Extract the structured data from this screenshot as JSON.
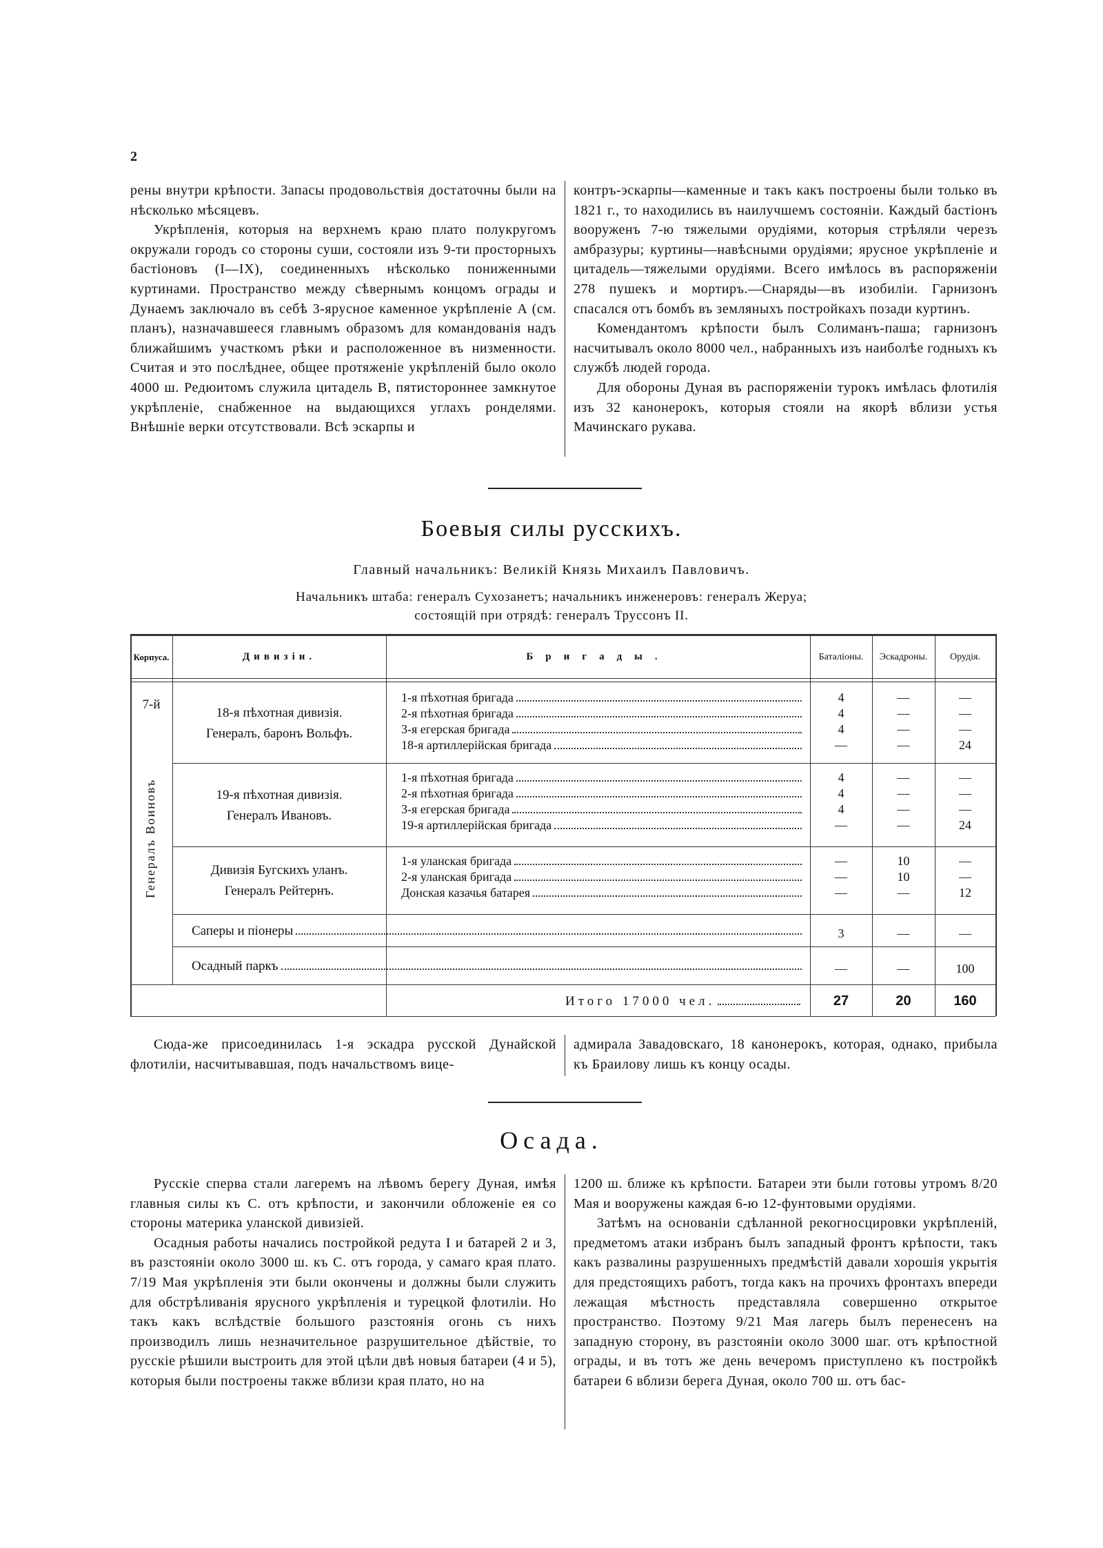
{
  "page_number": "2",
  "intro": {
    "left": [
      "рены внутри крѣпости. Запасы продовольствія достаточны были на нѣсколько мѣсяцевъ.",
      "Укрѣпленія, которыя на верхнемъ краю плато полукругомъ окружали городъ со стороны суши, состояли изъ 9-ти просторныхъ бастіоновъ (I—IX), соединенныхъ нѣсколько пониженными куртинами. Пространство между сѣвернымъ концомъ ограды и Дунаемъ заключало въ себѣ 3-ярусное каменное укрѣпленіе A (см. планъ), назначавшееся главнымъ образомъ для командованія надъ ближайшимъ участкомъ рѣки и расположенное въ низменности. Считая и это послѣднее, общее протяженіе укрѣпленій было около 4000 ш. Редюитомъ служила цитадель B, пятистороннее замкнутое укрѣпленіе, снабженное на выдающихся углахъ ронделями. Внѣшніе верки отсутствовали. Всѣ эскарпы и"
    ],
    "right": [
      "контръ-эскарпы—каменные и такъ какъ построены были только въ 1821 г., то находились въ наилучшемъ состояніи. Каждый бастіонъ вооруженъ 7-ю тяжелыми орудіями, которыя стрѣляли черезъ амбразуры; куртины—навѣсными орудіями; ярусное укрѣпленіе и цитадель—тяжелыми орудіями. Всего имѣлось въ распоряженіи 278 пушекъ и мортиръ.—Снаряды—въ изобиліи. Гарнизонъ спасался отъ бомбъ въ земляныхъ постройкахъ позади куртинъ.",
      "Комендантомъ крѣпости былъ Солиманъ-паша; гарнизонъ насчитывалъ около 8000 чел., набранныхъ изъ наиболѣе годныхъ къ службѣ людей города.",
      "Для обороны Дуная въ распоряженіи турокъ имѣлась флотилія изъ 32 канонерокъ, которыя стояли на якорѣ вблизи устья Мачинскаго рукава."
    ]
  },
  "forces": {
    "title": "Боевыя силы русскихъ.",
    "commander": "Главный начальникъ: Великій Князь Михаилъ Павловичъ.",
    "staff": [
      "Начальникъ штаба: генералъ Сухозанетъ; начальникъ инженеровъ: генералъ Жеруа;",
      "состоящій при отрядѣ: генералъ Труссонъ II."
    ],
    "table": {
      "headers": [
        "Корпуса.",
        "Дивизіи.",
        "Бригады.",
        "Баталіоны.",
        "Эскадроны.",
        "Орудія."
      ],
      "corps": "7-й",
      "corps_general": "Генералъ Воиновъ",
      "divisions": [
        {
          "name": "18-я пѣхотная дивизія.",
          "general": "Генералъ, баронъ Вольфъ.",
          "brigades": [
            {
              "name": "1-я пѣхотная бригада",
              "battalions": 4,
              "squadrons": "—",
              "guns": "—"
            },
            {
              "name": "2-я пѣхотная бригада",
              "battalions": 4,
              "squadrons": "—",
              "guns": "—"
            },
            {
              "name": "3-я егерская бригада",
              "battalions": 4,
              "squadrons": "—",
              "guns": "—"
            },
            {
              "name": "18-я артиллерійская бригада",
              "battalions": "—",
              "squadrons": "—",
              "guns": 24
            }
          ]
        },
        {
          "name": "19-я пѣхотная дивизія.",
          "general": "Генералъ Ивановъ.",
          "brigades": [
            {
              "name": "1-я пѣхотная бригада",
              "battalions": 4,
              "squadrons": "—",
              "guns": "—"
            },
            {
              "name": "2-я пѣхотная бригада",
              "battalions": 4,
              "squadrons": "—",
              "guns": "—"
            },
            {
              "name": "3-я егерская бригада",
              "battalions": 4,
              "squadrons": "—",
              "guns": "—"
            },
            {
              "name": "19-я артиллерійская бригада",
              "battalions": "—",
              "squadrons": "—",
              "guns": 24
            }
          ]
        },
        {
          "name": "Дивизія Бугскихъ уланъ.",
          "general": "Генералъ Рейтернъ.",
          "brigades": [
            {
              "name": "1-я уланская бригада",
              "battalions": "—",
              "squadrons": 10,
              "guns": "—"
            },
            {
              "name": "2-я уланская бригада",
              "battalions": "—",
              "squadrons": 10,
              "guns": "—"
            },
            {
              "name": "Донская казачья батарея",
              "battalions": "—",
              "squadrons": "—",
              "guns": 12
            }
          ]
        }
      ],
      "others": [
        {
          "name": "Саперы и піонеры",
          "battalions": 3,
          "squadrons": "—",
          "guns": "—"
        },
        {
          "name": "Осадный паркъ",
          "battalions": "—",
          "squadrons": "—",
          "guns": 100
        }
      ],
      "total": {
        "label": "Итого 17000 чел.",
        "battalions": 27,
        "squadrons": 20,
        "guns": 160
      }
    }
  },
  "flotilla": {
    "left": "Сюда-же присоединилась 1-я эскадра русской Дунайской флотиліи, насчитывавшая, подъ начальствомъ вице-",
    "right": "адмирала Завадовскаго, 18 канонерокъ, которая, однако, прибыла къ Браилову лишь къ концу осады."
  },
  "siege": {
    "title": "Осада.",
    "left": [
      "Русскіе сперва стали лагеремъ на лѣвомъ берегу Дуная, имѣя главныя силы къ С. отъ крѣпости, и закончили обложеніе ея со стороны материка уланской дивизіей.",
      "Осадныя работы начались постройкой редута I и батарей 2 и 3, въ разстояніи около 3000 ш. къ С. отъ города, у самаго края плато. 7/19 Мая укрѣпленія эти были окончены и должны были служить для обстрѣливанія ярусного укрѣпленія и турецкой флотиліи. Но такъ какъ вслѣдствіе большого разстоянія огонь съ нихъ производилъ лишь незначительное разрушительное дѣйствіе, то русскіе рѣшили выстроить для этой цѣли двѣ новыя батареи (4 и 5), которыя были построены также вблизи края плато, но на"
    ],
    "right": [
      "1200 ш. ближе къ крѣпости. Батареи эти были готовы утромъ 8/20 Мая и вооружены каждая 6-ю 12-фунтовыми орудіями.",
      "Затѣмъ на основаніи сдѣланной рекогносцировки укрѣпленій, предметомъ атаки избранъ былъ западный фронтъ крѣпости, такъ какъ развалины разрушенныхъ предмѣстій давали хорошія укрытія для предстоящихъ работъ, тогда какъ на прочихъ фронтахъ впереди лежащая мѣстность представляла совершенно открытое пространство. Поэтому 9/21 Мая лагерь былъ перенесенъ на западную сторону, въ разстояніи около 3000 шаг. отъ крѣпостной ограды, и въ тотъ же день вечеромъ приступлено къ постройкѣ батареи 6 вблизи берега Дуная, около 700 ш. отъ бас-"
    ]
  }
}
